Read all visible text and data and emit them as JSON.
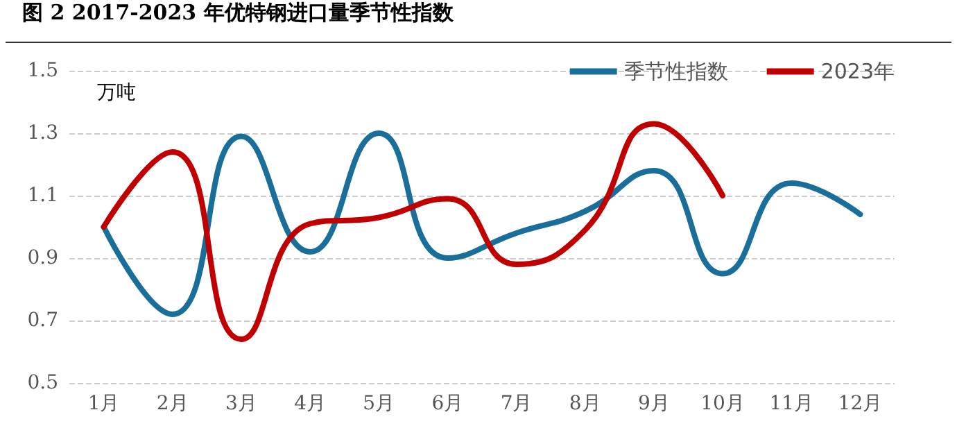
{
  "chart_data": {
    "type": "line",
    "title": "图 2 2017-2023 年优特钢进口量季节性指数",
    "ylabel": "万吨",
    "categories": [
      "1月",
      "2月",
      "3月",
      "4月",
      "5月",
      "6月",
      "7月",
      "8月",
      "9月",
      "10月",
      "11月",
      "12月"
    ],
    "series": [
      {
        "name": "季节性指数",
        "color": "#1a6e9a",
        "values": [
          1.0,
          0.72,
          1.29,
          0.92,
          1.3,
          0.9,
          0.98,
          1.05,
          1.18,
          0.85,
          1.14,
          1.04
        ]
      },
      {
        "name": "2023年",
        "color": "#c00000",
        "values": [
          1.0,
          1.24,
          0.64,
          1.01,
          1.03,
          1.09,
          0.88,
          0.99,
          1.33,
          1.1,
          null,
          null
        ]
      }
    ],
    "ylim": [
      0.5,
      1.5
    ],
    "yticks": [
      0.5,
      0.7,
      0.9,
      1.1,
      1.3,
      1.5
    ],
    "grid": "y",
    "legend": "top right",
    "marker": "none",
    "line_style": "solid"
  }
}
